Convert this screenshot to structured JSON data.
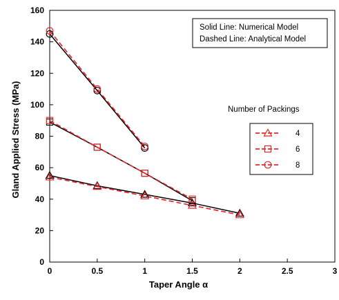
{
  "chart_data": {
    "type": "line",
    "xlabel": "Taper Angle α",
    "ylabel": "Gland Applied Stress (MPa)",
    "xlim": [
      0,
      3
    ],
    "ylim": [
      0,
      160
    ],
    "xticks": [
      "0",
      "0.5",
      "1",
      "1.5",
      "2",
      "2.5",
      "3"
    ],
    "yticks": [
      "0",
      "20",
      "40",
      "60",
      "80",
      "100",
      "120",
      "140",
      "160"
    ],
    "grid": false,
    "annotation_lines": [
      "Solid Line: Numerical Model",
      "Dashed Line: Analytical Model"
    ],
    "legend_title": "Number of Packings",
    "legend_placement": "right",
    "series": [
      {
        "name": "4",
        "marker": "triangle",
        "numerical": {
          "x": [
            0,
            0.5,
            1,
            1.5,
            2
          ],
          "y": [
            55,
            48.5,
            43,
            37.5,
            31
          ]
        },
        "analytical": {
          "x": [
            0,
            0.5,
            1,
            1.5,
            2
          ],
          "y": [
            54,
            48,
            42,
            36,
            30
          ]
        }
      },
      {
        "name": "6",
        "marker": "square",
        "numerical": {
          "x": [
            0,
            0.5,
            1,
            1.5
          ],
          "y": [
            89,
            73,
            56.5,
            39
          ]
        },
        "analytical": {
          "x": [
            0,
            0.5,
            1,
            1.5
          ],
          "y": [
            90,
            73,
            56.5,
            40
          ]
        }
      },
      {
        "name": "8",
        "marker": "circle",
        "numerical": {
          "x": [
            0,
            0.5,
            1
          ],
          "y": [
            145,
            109,
            72.5
          ]
        },
        "analytical": {
          "x": [
            0,
            0.5,
            1
          ],
          "y": [
            147,
            110,
            73.5
          ]
        }
      }
    ],
    "colors": {
      "numerical": "#000000",
      "analytical": "#e8262b"
    }
  }
}
